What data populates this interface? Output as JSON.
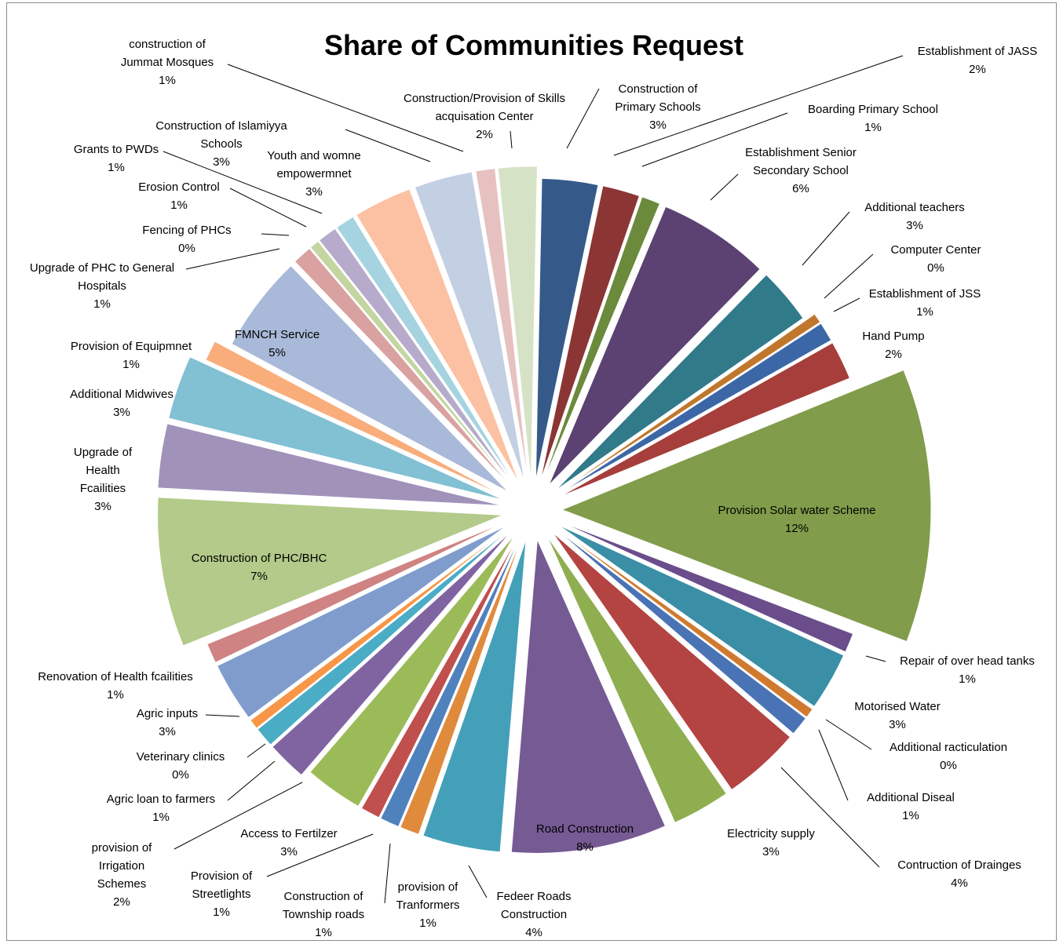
{
  "chart_data": {
    "type": "pie",
    "title": "Share of  Communities Request",
    "exploded": true,
    "data_labels": "category name and percentage",
    "slices": [
      {
        "label": "Construction of Primary Schools",
        "value": 3,
        "percent": "3%",
        "color": "#355a8a"
      },
      {
        "label": "Establishment of JASS",
        "value": 2,
        "percent": "2%",
        "color": "#8b3634"
      },
      {
        "label": "Boarding Primary School",
        "value": 1,
        "percent": "1%",
        "color": "#6b8a3c"
      },
      {
        "label": "Establishment Senior Secondary School",
        "value": 6,
        "percent": "6%",
        "color": "#5b4272"
      },
      {
        "label": "Additional teachers",
        "value": 3,
        "percent": "3%",
        "color": "#317a89"
      },
      {
        "label": "Computer Center",
        "value": 0,
        "percent": "0%",
        "color": "#c0772c"
      },
      {
        "label": "Establishment of JSS",
        "value": 1,
        "percent": "1%",
        "color": "#3c67a6"
      },
      {
        "label": "Hand Pump",
        "value": 2,
        "percent": "2%",
        "color": "#a63e3b"
      },
      {
        "label": "Provision Solar water Scheme",
        "value": 12,
        "percent": "12%",
        "color": "#819c4a"
      },
      {
        "label": "Repair of over head tanks",
        "value": 1,
        "percent": "1%",
        "color": "#6a4d8a"
      },
      {
        "label": "Motorised Water",
        "value": 3,
        "percent": "3%",
        "color": "#3a8ea6"
      },
      {
        "label": "Additional racticulation",
        "value": 0,
        "percent": "0%",
        "color": "#d07a30"
      },
      {
        "label": "Additional Diseal",
        "value": 1,
        "percent": "1%",
        "color": "#4a73b5"
      },
      {
        "label": "Contruction of Drainges",
        "value": 4,
        "percent": "4%",
        "color": "#b34442"
      },
      {
        "label": "Electricity supply",
        "value": 3,
        "percent": "3%",
        "color": "#8fae50"
      },
      {
        "label": "Road Construction",
        "value": 8,
        "percent": "8%",
        "color": "#765a94"
      },
      {
        "label": "Fedeer Roads Construction",
        "value": 4,
        "percent": "4%",
        "color": "#43a0b8"
      },
      {
        "label": "provision of Tranformers",
        "value": 1,
        "percent": "1%",
        "color": "#e08a3c"
      },
      {
        "label": "Construction of Township roads",
        "value": 1,
        "percent": "1%",
        "color": "#4f81bd"
      },
      {
        "label": "Provision of Streetlights",
        "value": 1,
        "percent": "1%",
        "color": "#c0504d"
      },
      {
        "label": "Access to Fertilzer",
        "value": 3,
        "percent": "3%",
        "color": "#9bbb59"
      },
      {
        "label": "provision of Irrigation Schemes",
        "value": 2,
        "percent": "2%",
        "color": "#8064a2"
      },
      {
        "label": "Agric loan to farmers",
        "value": 1,
        "percent": "1%",
        "color": "#4bacc6"
      },
      {
        "label": "Veterinary clinics",
        "value": 0,
        "percent": "0%",
        "color": "#f79646"
      },
      {
        "label": "Agric inputs",
        "value": 3,
        "percent": "3%",
        "color": "#7f9ccd"
      },
      {
        "label": "Renovation of Health fcailities",
        "value": 1,
        "percent": "1%",
        "color": "#cf8382"
      },
      {
        "label": "Construction of PHC/BHC",
        "value": 7,
        "percent": "7%",
        "color": "#b3ca8a"
      },
      {
        "label": "Upgrade of Health Fcailities",
        "value": 3,
        "percent": "3%",
        "color": "#a192ba"
      },
      {
        "label": "Additional Midwives",
        "value": 3,
        "percent": "3%",
        "color": "#82c0d3"
      },
      {
        "label": "Provision of Equipmnet",
        "value": 1,
        "percent": "1%",
        "color": "#f9ad7a"
      },
      {
        "label": "FMNCH Service",
        "value": 5,
        "percent": "5%",
        "color": "#a9b9d9"
      },
      {
        "label": "Upgrade of PHC to General Hospitals",
        "value": 1,
        "percent": "1%",
        "color": "#d9a1a0"
      },
      {
        "label": "Fencing of PHCs",
        "value": 0,
        "percent": "0%",
        "color": "#c3d6a2"
      },
      {
        "label": "Erosion Control",
        "value": 1,
        "percent": "1%",
        "color": "#b7abcc"
      },
      {
        "label": "Grants to PWDs",
        "value": 1,
        "percent": "1%",
        "color": "#a6d3e0"
      },
      {
        "label": "Youth and womne empowermnet",
        "value": 3,
        "percent": "3%",
        "color": "#fbc1a2"
      },
      {
        "label": "Construction of Islamiyya Schools",
        "value": 3,
        "percent": "3%",
        "color": "#c3cfe3"
      },
      {
        "label": "construction of Jummat Mosques",
        "value": 1,
        "percent": "1%",
        "color": "#e6c1c0"
      },
      {
        "label": "Construction/Provision of Skills acquisation Center",
        "value": 2,
        "percent": "2%",
        "color": "#d6e2c6"
      }
    ]
  }
}
